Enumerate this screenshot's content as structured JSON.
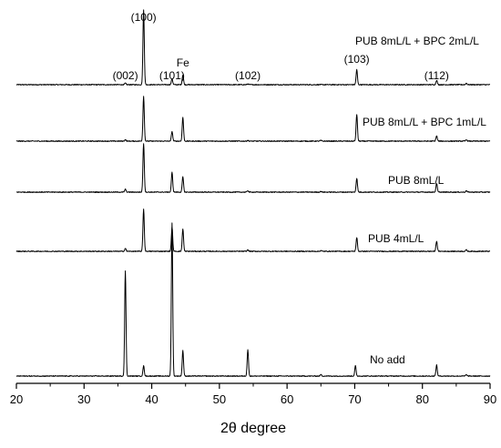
{
  "chart_data": {
    "type": "line",
    "title": "",
    "xlabel": "2θ degree",
    "ylabel": "",
    "xlim": [
      20,
      90
    ],
    "xticks": [
      20,
      30,
      40,
      50,
      60,
      70,
      80,
      90
    ],
    "grid": false,
    "peak_labels": [
      {
        "text": "(100)",
        "x": 38.8
      },
      {
        "text": "(002)",
        "x": 36.1
      },
      {
        "text": "(101)",
        "x": 43.0
      },
      {
        "text": "Fe",
        "x": 44.6
      },
      {
        "text": "(102)",
        "x": 54.2
      },
      {
        "text": "(103)",
        "x": 70.3
      },
      {
        "text": "(112)",
        "x": 82.1
      }
    ],
    "series": [
      {
        "name": "PUB 8mL/L + BPC 2mL/L",
        "peaks": [
          {
            "x": 36.1,
            "h": 0.02
          },
          {
            "x": 38.8,
            "h": 1.0
          },
          {
            "x": 43.0,
            "h": 0.08
          },
          {
            "x": 44.6,
            "h": 0.13
          },
          {
            "x": 54.2,
            "h": 0.01
          },
          {
            "x": 70.3,
            "h": 0.2
          },
          {
            "x": 82.1,
            "h": 0.06
          },
          {
            "x": 86.5,
            "h": 0.02
          }
        ]
      },
      {
        "name": "PUB 8mL/L + BPC 1mL/L",
        "peaks": [
          {
            "x": 36.1,
            "h": 0.02
          },
          {
            "x": 38.8,
            "h": 0.6
          },
          {
            "x": 43.0,
            "h": 0.13
          },
          {
            "x": 44.6,
            "h": 0.32
          },
          {
            "x": 54.2,
            "h": 0.01
          },
          {
            "x": 65.0,
            "h": 0.01
          },
          {
            "x": 70.3,
            "h": 0.36
          },
          {
            "x": 82.1,
            "h": 0.07
          },
          {
            "x": 86.5,
            "h": 0.02
          }
        ]
      },
      {
        "name": "PUB 8mL/L",
        "peaks": [
          {
            "x": 36.1,
            "h": 0.04
          },
          {
            "x": 38.8,
            "h": 0.67
          },
          {
            "x": 43.0,
            "h": 0.27
          },
          {
            "x": 44.6,
            "h": 0.21
          },
          {
            "x": 54.2,
            "h": 0.02
          },
          {
            "x": 65.0,
            "h": 0.01
          },
          {
            "x": 70.3,
            "h": 0.19
          },
          {
            "x": 82.1,
            "h": 0.12
          },
          {
            "x": 86.5,
            "h": 0.02
          }
        ]
      },
      {
        "name": "PUB 4mL/L",
        "peaks": [
          {
            "x": 36.1,
            "h": 0.04
          },
          {
            "x": 38.8,
            "h": 0.58
          },
          {
            "x": 43.0,
            "h": 0.33
          },
          {
            "x": 44.6,
            "h": 0.31
          },
          {
            "x": 54.2,
            "h": 0.02
          },
          {
            "x": 65.0,
            "h": 0.01
          },
          {
            "x": 70.3,
            "h": 0.19
          },
          {
            "x": 82.1,
            "h": 0.14
          },
          {
            "x": 86.5,
            "h": 0.02
          }
        ]
      },
      {
        "name": "No add",
        "peaks": [
          {
            "x": 36.1,
            "h": 1.44
          },
          {
            "x": 38.8,
            "h": 0.14
          },
          {
            "x": 43.0,
            "h": 2.1
          },
          {
            "x": 44.6,
            "h": 0.35
          },
          {
            "x": 54.2,
            "h": 0.36
          },
          {
            "x": 65.0,
            "h": 0.02
          },
          {
            "x": 70.1,
            "h": 0.14
          },
          {
            "x": 82.1,
            "h": 0.15
          },
          {
            "x": 86.5,
            "h": 0.02
          }
        ]
      }
    ]
  }
}
